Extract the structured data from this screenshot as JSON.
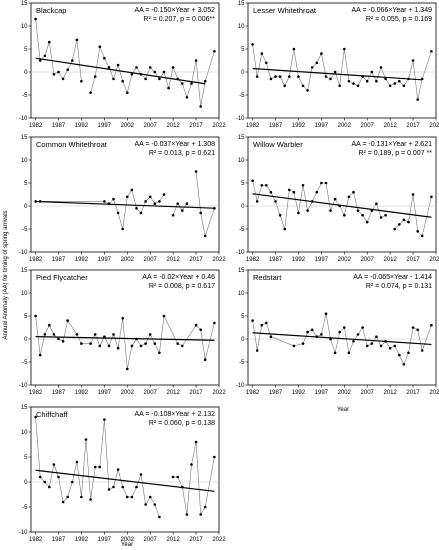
{
  "figure": {
    "ylabel": "Annual Anomaly (AA) for timing of spring arrivals",
    "xlabel": "Year"
  },
  "chart_data": [
    {
      "type": "line",
      "title": "Blackcap",
      "equation": "AA = -0.150×Year + 3.052",
      "r2": "R² = 0.207, p = 0.006**",
      "xlim": [
        1981,
        2022
      ],
      "ylim": [
        -10,
        15
      ],
      "xticks": [
        1982,
        1987,
        1992,
        1997,
        2002,
        2007,
        2012,
        2017,
        2022
      ],
      "yticks": [
        -10,
        -5,
        0,
        5,
        10,
        15
      ],
      "trend": {
        "slope": -0.15,
        "x0": 1982,
        "x1": 2019
      },
      "x": [
        1982,
        1983,
        1984,
        1985,
        1986,
        1987,
        1988,
        1989,
        1990,
        1991,
        1992,
        1993,
        1994,
        1995,
        1996,
        1997,
        1998,
        1999,
        2000,
        2001,
        2002,
        2003,
        2004,
        2005,
        2006,
        2007,
        2008,
        2009,
        2010,
        2011,
        2012,
        2013,
        2014,
        2015,
        2016,
        2017,
        2018,
        2019,
        2021
      ],
      "y": [
        11.5,
        2.5,
        3.5,
        6.5,
        -0.5,
        0,
        -1.5,
        0.5,
        2.5,
        7,
        -2,
        null,
        -4.5,
        -1,
        5.5,
        3,
        1,
        -1.5,
        1.5,
        -2,
        -4.5,
        -0.5,
        1,
        -0.5,
        -1.5,
        1,
        0,
        -1.5,
        0,
        -3.5,
        1,
        -1.5,
        -2.5,
        -5.5,
        -2.5,
        2.5,
        -7.5,
        -2,
        4.5
      ]
    },
    {
      "type": "line",
      "title": "Lesser Whitethroat",
      "equation": "AA = -0.066×Year + 1.349",
      "r2": "R² = 0.055, p = 0.169",
      "xlim": [
        1981,
        2022
      ],
      "ylim": [
        -10,
        15
      ],
      "xticks": [
        1982,
        1987,
        1992,
        1997,
        2002,
        2007,
        2012,
        2017,
        2022
      ],
      "yticks": [
        -10,
        -5,
        0,
        5,
        10,
        15
      ],
      "trend": {
        "slope": -0.066,
        "x0": 1982,
        "x1": 2019
      },
      "x": [
        1982,
        1983,
        1984,
        1985,
        1986,
        1987,
        1988,
        1989,
        1990,
        1991,
        1992,
        1993,
        1994,
        1995,
        1996,
        1997,
        1998,
        1999,
        2000,
        2001,
        2002,
        2003,
        2004,
        2005,
        2006,
        2007,
        2008,
        2009,
        2010,
        2011,
        2012,
        2013,
        2014,
        2015,
        2016,
        2017,
        2018,
        2019,
        2021
      ],
      "y": [
        6,
        -1,
        4,
        2,
        -1.5,
        -1,
        -1,
        -3,
        -1,
        5,
        -1,
        -3,
        -4,
        1,
        2,
        4,
        -1,
        -1.5,
        0,
        -3,
        5,
        -2,
        -2.5,
        -3,
        -1,
        -2,
        0,
        -2,
        1,
        -1.5,
        -3,
        -2.5,
        -2,
        -3,
        -1.5,
        2.5,
        -6,
        -1.5,
        4.5
      ]
    },
    {
      "type": "line",
      "title": "Common Whitethroat",
      "equation": "AA = -0.037×Year + 1.308",
      "r2": "R² = 0.013, p = 0.621",
      "xlim": [
        1981,
        2022
      ],
      "ylim": [
        -10,
        15
      ],
      "xticks": [
        1982,
        1987,
        1992,
        1997,
        2002,
        2007,
        2012,
        2017,
        2022
      ],
      "yticks": [
        -10,
        -5,
        0,
        5,
        10,
        15
      ],
      "trend": {
        "slope": -0.037,
        "x0": 1982,
        "x1": 2021
      },
      "x": [
        1982,
        1983,
        1997,
        1998,
        1999,
        2000,
        2001,
        2002,
        2003,
        2004,
        2005,
        2006,
        2007,
        2008,
        2009,
        2010,
        2011,
        2012,
        2013,
        2014,
        2015,
        2016,
        2017,
        2018,
        2019,
        2021
      ],
      "y": [
        1,
        1,
        1,
        0.5,
        1.5,
        -1.5,
        -5,
        2,
        3.5,
        -0.5,
        -1.5,
        1,
        2,
        0.5,
        1,
        2.5,
        null,
        -2,
        0.5,
        -1,
        0.5,
        null,
        7.5,
        -1.5,
        -6.5,
        -0.5
      ]
    },
    {
      "type": "line",
      "title": "Willow Warbler",
      "equation": "AA = -0.131×Year + 2.621",
      "r2": "R² = 0.189, p = 0.007 **",
      "xlim": [
        1981,
        2022
      ],
      "ylim": [
        -10,
        15
      ],
      "xticks": [
        1982,
        1987,
        1992,
        1997,
        2002,
        2007,
        2012,
        2017,
        2022
      ],
      "yticks": [
        -10,
        -5,
        0,
        5,
        10,
        15
      ],
      "trend": {
        "slope": -0.131,
        "x0": 1982,
        "x1": 2021
      },
      "x": [
        1982,
        1983,
        1984,
        1985,
        1986,
        1987,
        1988,
        1989,
        1990,
        1991,
        1992,
        1993,
        1994,
        1995,
        1996,
        1997,
        1998,
        1999,
        2000,
        2001,
        2002,
        2003,
        2004,
        2005,
        2006,
        2007,
        2008,
        2009,
        2010,
        2011,
        2012,
        2013,
        2014,
        2015,
        2016,
        2017,
        2018,
        2019,
        2021
      ],
      "y": [
        5.5,
        1,
        4.5,
        4.5,
        3,
        1,
        -2,
        -5,
        3.5,
        3,
        -1.5,
        4.5,
        -1,
        1,
        3,
        5,
        5,
        -1,
        1.5,
        0,
        -2,
        2,
        3,
        -1,
        -2,
        -3.5,
        -1,
        0.5,
        -2.5,
        -2,
        null,
        -5,
        -4,
        -3,
        -3.5,
        2.5,
        -5.5,
        -6.5,
        2
      ]
    },
    {
      "type": "line",
      "title": "Pied Flycatcher",
      "equation": "AA = -0.02×Year + 0.46",
      "r2": "R² = 0.008, p = 0.617",
      "xlim": [
        1981,
        2022
      ],
      "ylim": [
        -10,
        15
      ],
      "xticks": [
        1982,
        1987,
        1992,
        1997,
        2002,
        2007,
        2012,
        2017,
        2022
      ],
      "yticks": [
        -10,
        -5,
        0,
        5,
        10,
        15
      ],
      "trend": {
        "slope": -0.02,
        "x0": 1982,
        "x1": 2021
      },
      "x": [
        1982,
        1983,
        1984,
        1985,
        1986,
        1987,
        1988,
        1989,
        1991,
        1992,
        1994,
        1995,
        1996,
        1997,
        1998,
        1999,
        2000,
        2001,
        2002,
        2003,
        2004,
        2005,
        2006,
        2007,
        2008,
        2009,
        2010,
        2013,
        2014,
        2017,
        2018,
        2019,
        2021
      ],
      "y": [
        5,
        -3.5,
        1,
        3,
        1,
        0,
        -0.5,
        4,
        1,
        -1,
        -1,
        1,
        -1.5,
        0.5,
        -1.5,
        1,
        -2,
        4.5,
        -6.5,
        -1.5,
        0,
        -1.5,
        -1,
        1,
        -1,
        -3,
        5,
        -1,
        -1.5,
        3,
        2,
        -4.5,
        3.5
      ]
    },
    {
      "type": "line",
      "title": "Redstart",
      "equation": "AA = -0.065×Year - 1.414",
      "r2": "R² = 0.074, p = 0.131",
      "xlim": [
        1981,
        2022
      ],
      "ylim": [
        -10,
        15
      ],
      "xticks": [
        1982,
        1987,
        1992,
        1997,
        2002,
        2007,
        2012,
        2017,
        2022
      ],
      "yticks": [
        -10,
        -5,
        0,
        5,
        10,
        15
      ],
      "trend": {
        "slope": -0.065,
        "x0": 1982,
        "x1": 2021
      },
      "x": [
        1982,
        1983,
        1984,
        1985,
        1986,
        1991,
        1993,
        1994,
        1995,
        1996,
        1997,
        1998,
        1999,
        2000,
        2001,
        2002,
        2003,
        2004,
        2005,
        2006,
        2007,
        2008,
        2009,
        2010,
        2011,
        2012,
        2013,
        2014,
        2015,
        2016,
        2017,
        2018,
        2019,
        2021
      ],
      "y": [
        4,
        -2.5,
        3,
        3.5,
        0.5,
        -1.5,
        -1,
        1.5,
        2,
        0.5,
        1,
        5.5,
        0,
        -3,
        1.5,
        2.5,
        -3,
        -0.5,
        1,
        2.5,
        -1.5,
        -1,
        0.5,
        -1.5,
        -0.5,
        -2,
        -1.5,
        -3.5,
        -5.5,
        -3,
        2.5,
        2,
        -2.5,
        3
      ]
    },
    {
      "type": "line",
      "title": "Chiffchaff",
      "equation": "AA = -0.108×Year + 2.132",
      "r2": "R² = 0.060, p = 0.138",
      "xlim": [
        1981,
        2022
      ],
      "ylim": [
        -10,
        15
      ],
      "xticks": [
        1982,
        1987,
        1992,
        1997,
        2002,
        2007,
        2012,
        2017,
        2022
      ],
      "yticks": [
        -10,
        -5,
        0,
        5,
        10,
        15
      ],
      "trend": {
        "slope": -0.108,
        "x0": 1982,
        "x1": 2021
      },
      "x": [
        1982,
        1983,
        1984,
        1985,
        1986,
        1987,
        1988,
        1989,
        1990,
        1991,
        1992,
        1993,
        1994,
        1995,
        1996,
        1997,
        1998,
        1999,
        2000,
        2001,
        2002,
        2003,
        2004,
        2005,
        2006,
        2007,
        2008,
        2009,
        2010,
        2011,
        2012,
        2013,
        2014,
        2015,
        2016,
        2017,
        2018,
        2019,
        2021
      ],
      "y": [
        13,
        1,
        0,
        -1,
        3.5,
        1,
        -4,
        -3,
        0,
        4,
        -3,
        8.5,
        -3.5,
        3,
        3,
        12.5,
        -1.5,
        -1,
        2.5,
        -1,
        -3,
        -3,
        -1,
        1.5,
        -4.5,
        -3,
        -4.5,
        -7,
        null,
        null,
        1,
        1,
        -1,
        -6.5,
        3.5,
        8,
        -6.5,
        -5,
        5
      ]
    }
  ]
}
